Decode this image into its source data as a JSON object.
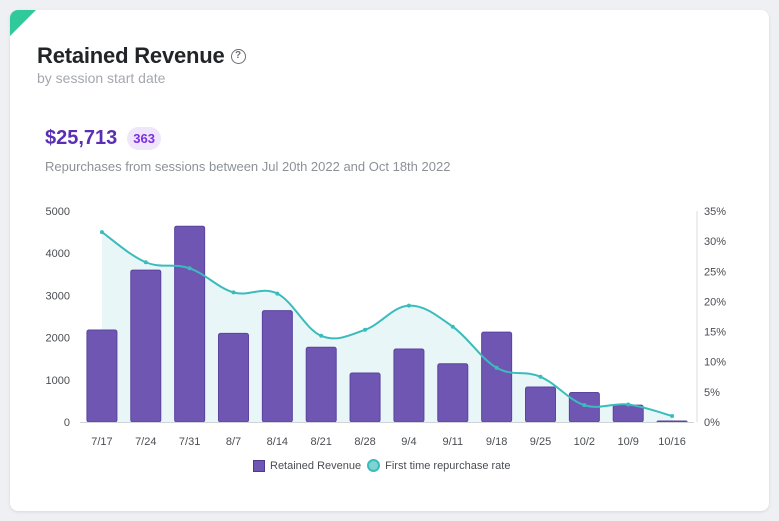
{
  "header": {
    "title": "Retained Revenue",
    "subtitle": "by session start date"
  },
  "summary": {
    "total": "$25,713",
    "count": "363",
    "description": "Repurchases from sessions between Jul 20th 2022 and Oct 18th 2022"
  },
  "legend": {
    "bar_label": "Retained Revenue",
    "line_label": "First time repurchase rate"
  },
  "colors": {
    "bar": "#6e56b2",
    "bar_edge": "#5a44a0",
    "line": "#3bbcbc",
    "area": "#e7f5f6",
    "accent": "#2fc99c"
  },
  "chart_data": {
    "type": "bar",
    "categories": [
      "7/17",
      "7/24",
      "7/31",
      "8/7",
      "8/14",
      "8/21",
      "8/28",
      "9/4",
      "9/11",
      "9/18",
      "9/25",
      "10/2",
      "10/9",
      "10/16"
    ],
    "series": [
      {
        "name": "Retained Revenue",
        "type": "bar",
        "axis": "left",
        "values": [
          2180,
          3600,
          4640,
          2100,
          2640,
          1770,
          1160,
          1730,
          1380,
          2130,
          830,
          700,
          400,
          20
        ]
      },
      {
        "name": "First time repurchase rate",
        "type": "line",
        "axis": "right",
        "values": [
          31.5,
          26.5,
          25.5,
          21.5,
          21.3,
          14.3,
          15.3,
          19.3,
          15.8,
          9.0,
          7.5,
          2.8,
          2.9,
          1.0
        ]
      }
    ],
    "y_left": {
      "min": 0,
      "max": 5000,
      "ticks": [
        "0",
        "1000",
        "2000",
        "3000",
        "4000",
        "5000"
      ]
    },
    "y_right": {
      "min": 0,
      "max": 35,
      "ticks": [
        "0%",
        "5%",
        "10%",
        "15%",
        "20%",
        "25%",
        "30%",
        "35%"
      ]
    },
    "grid": false
  }
}
